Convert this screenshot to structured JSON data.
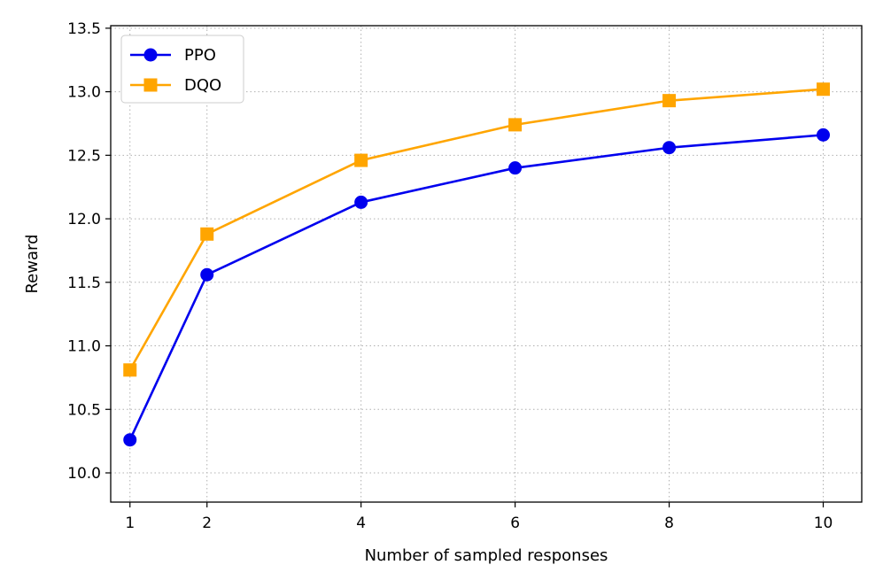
{
  "chart_data": {
    "type": "line",
    "title": "",
    "xlabel": "Number of sampled responses",
    "ylabel": "Reward",
    "x": [
      1,
      2,
      4,
      6,
      8,
      10
    ],
    "x_tick_labels": [
      "1",
      "2",
      "4",
      "6",
      "8",
      "10"
    ],
    "y_ticks": [
      10.0,
      10.5,
      11.0,
      11.5,
      12.0,
      12.5,
      13.0,
      13.5
    ],
    "y_tick_labels": [
      "10.0",
      "10.5",
      "11.0",
      "11.5",
      "12.0",
      "12.5",
      "13.0",
      "13.5"
    ],
    "xlim": [
      0.75,
      10.5
    ],
    "ylim": [
      9.77,
      13.52
    ],
    "grid": true,
    "grid_style": "dotted",
    "legend_position": "top-left",
    "series": [
      {
        "name": "PPO",
        "color": "#0000ee",
        "marker": "circle",
        "values": [
          10.26,
          11.56,
          12.13,
          12.4,
          12.56,
          12.66
        ]
      },
      {
        "name": "DQO",
        "color": "#ffa500",
        "marker": "square",
        "values": [
          10.81,
          11.88,
          12.46,
          12.74,
          12.93,
          13.02
        ]
      }
    ]
  }
}
